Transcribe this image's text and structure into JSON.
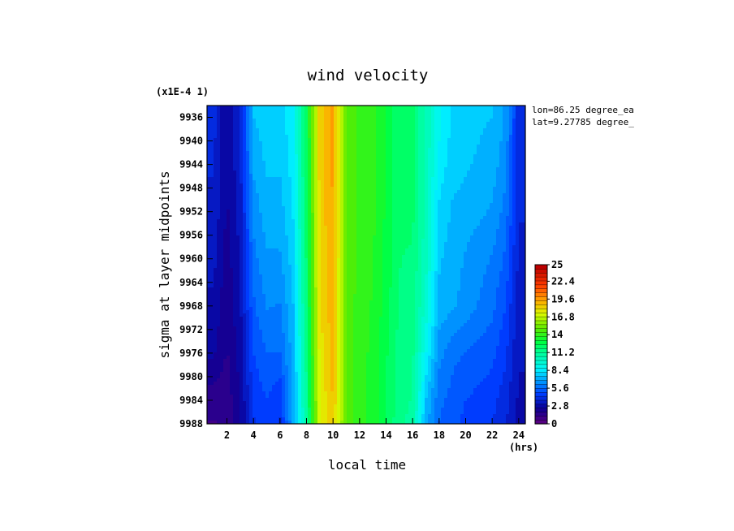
{
  "chart_data": {
    "type": "heatmap",
    "title": "wind velocity",
    "xlabel": "local time",
    "ylabel": "sigma at layer midpoints",
    "y_scale_note": "(x1E-4 1)",
    "x_unit": "(hrs)",
    "annotations": [
      "lon=86.25 degree_ea",
      "lat=9.27785 degree_"
    ],
    "x_ticks": [
      "2",
      "4",
      "6",
      "8",
      "10",
      "12",
      "14",
      "16",
      "18",
      "20",
      "22",
      "24"
    ],
    "y_ticks": [
      "9936",
      "9940",
      "9944",
      "9948",
      "9952",
      "9956",
      "9960",
      "9964",
      "9968",
      "9972",
      "9976",
      "9980",
      "9984",
      "9988"
    ],
    "colorbar_ticks": [
      "25",
      "22.4",
      "19.6",
      "16.8",
      "14",
      "11.2",
      "8.4",
      "5.6",
      "2.8",
      "0"
    ],
    "xlim": [
      0.5,
      24.5
    ],
    "ylim": [
      9988,
      9934
    ],
    "vlim": [
      0,
      25
    ],
    "x": [
      1,
      2,
      3,
      4,
      5,
      6,
      7,
      8,
      9,
      10,
      11,
      12,
      13,
      14,
      15,
      16,
      17,
      18,
      19,
      20,
      21,
      22,
      23,
      24
    ],
    "y": [
      9936,
      9944,
      9952,
      9960,
      9968,
      9976,
      9984,
      9988
    ],
    "z": [
      [
        4.0,
        2.5,
        3.8,
        7.5,
        7.8,
        7.8,
        8.6,
        12.5,
        18.5,
        19.5,
        15.0,
        14.2,
        14.0,
        13.0,
        12.0,
        12.0,
        10.5,
        9.0,
        8.0,
        7.8,
        7.6,
        7.5,
        6.8,
        4.0
      ],
      [
        3.8,
        2.5,
        3.6,
        7.0,
        7.6,
        7.6,
        8.4,
        12.4,
        18.5,
        19.5,
        15.0,
        14.2,
        14.0,
        13.0,
        12.0,
        12.0,
        10.5,
        8.5,
        7.8,
        7.6,
        7.4,
        7.2,
        6.5,
        4.0
      ],
      [
        3.6,
        2.4,
        3.4,
        6.5,
        7.2,
        7.2,
        8.2,
        12.2,
        18.3,
        19.4,
        15.0,
        14.2,
        13.9,
        13.0,
        12.0,
        12.0,
        10.4,
        8.0,
        7.4,
        7.2,
        7.0,
        6.8,
        6.0,
        3.8
      ],
      [
        3.3,
        2.2,
        3.2,
        6.0,
        6.8,
        6.8,
        7.8,
        12.0,
        18.2,
        19.3,
        15.0,
        14.1,
        13.8,
        12.9,
        11.9,
        11.8,
        10.2,
        7.6,
        7.2,
        6.8,
        6.5,
        6.2,
        5.5,
        3.6
      ],
      [
        3.0,
        2.0,
        3.0,
        5.5,
        6.3,
        6.2,
        7.5,
        11.8,
        18.0,
        19.2,
        15.0,
        14.0,
        13.7,
        12.8,
        11.8,
        11.6,
        9.8,
        7.3,
        7.0,
        6.6,
        6.2,
        5.8,
        5.0,
        3.4
      ],
      [
        2.6,
        1.8,
        2.8,
        5.0,
        5.6,
        5.6,
        7.2,
        11.5,
        17.8,
        19.0,
        15.0,
        14.0,
        13.6,
        12.6,
        11.6,
        11.4,
        8.8,
        6.5,
        5.8,
        5.6,
        5.4,
        5.2,
        4.5,
        3.2
      ],
      [
        1.5,
        1.5,
        2.5,
        4.5,
        5.0,
        4.5,
        7.0,
        11.2,
        17.5,
        18.8,
        15.0,
        14.0,
        13.5,
        12.5,
        11.5,
        11.2,
        7.5,
        5.8,
        5.4,
        5.0,
        4.8,
        4.6,
        4.0,
        3.0
      ],
      [
        1.2,
        1.4,
        2.4,
        4.3,
        4.8,
        4.3,
        6.9,
        11.0,
        17.4,
        18.7,
        15.0,
        14.0,
        13.5,
        12.5,
        11.4,
        11.0,
        7.2,
        5.6,
        5.2,
        4.8,
        4.6,
        4.4,
        3.8,
        2.9
      ]
    ]
  }
}
